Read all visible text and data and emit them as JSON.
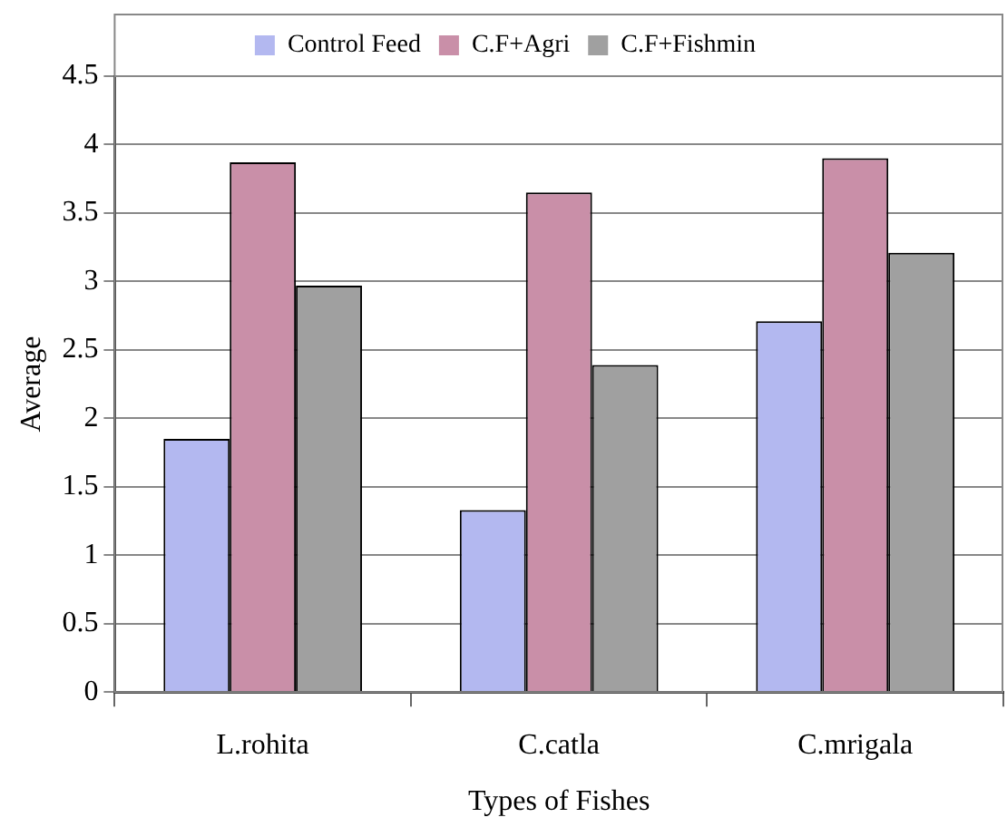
{
  "chart_data": {
    "type": "bar",
    "xlabel": "Types of Fishes",
    "ylabel": "Average",
    "categories": [
      "L.rohita",
      "C.catla",
      "C.mrigala"
    ],
    "series": [
      {
        "name": "Control Feed",
        "color": "#b3b8f0",
        "values": [
          1.85,
          1.33,
          2.71
        ]
      },
      {
        "name": "C.F+Agri",
        "color": "#c98fa8",
        "values": [
          3.87,
          3.65,
          3.9
        ]
      },
      {
        "name": "C.F+Fishmin",
        "color": "#a0a0a0",
        "values": [
          2.97,
          2.39,
          3.21
        ]
      }
    ],
    "ylim": [
      0,
      4.5
    ],
    "yticks": [
      0,
      0.5,
      1,
      1.5,
      2,
      2.5,
      3,
      3.5,
      4,
      4.5
    ],
    "grid": "y",
    "legend": "top"
  }
}
